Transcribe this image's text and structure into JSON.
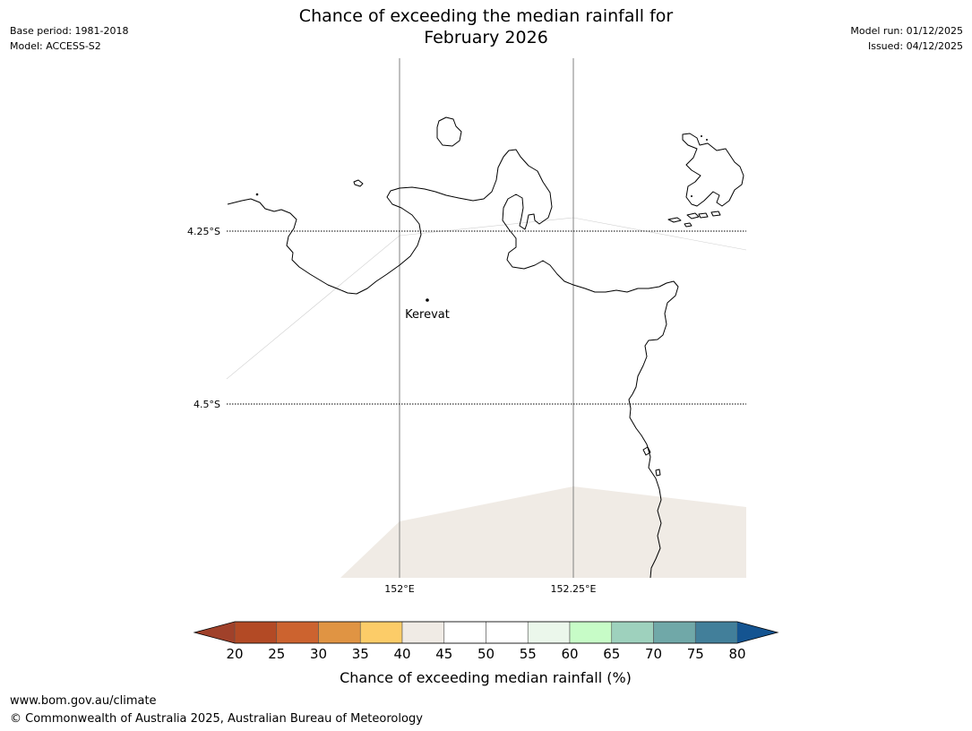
{
  "title_line1": "Chance of exceeding the median rainfall for",
  "title_line2": "February 2026",
  "meta_left": [
    "Base period: 1981-2018",
    "Model: ACCESS-S2"
  ],
  "meta_right": [
    "Model run: 01/12/2025",
    "Issued: 04/12/2025"
  ],
  "map": {
    "lat_labels": [
      "4.25°S",
      "4.5°S"
    ],
    "lon_labels": [
      "152°E",
      "152.25°E"
    ],
    "places": [
      {
        "name": "Kerevat"
      }
    ],
    "land_colors": {
      "coast": "#000000",
      "shade_40_45": "#f0ebe5"
    }
  },
  "colorbar": {
    "title": "Chance of exceeding median rainfall (%)",
    "ticks": [
      "20",
      "25",
      "30",
      "35",
      "40",
      "45",
      "50",
      "55",
      "60",
      "65",
      "70",
      "75",
      "80"
    ],
    "colors": [
      "#a0412a",
      "#b34a25",
      "#cc632f",
      "#e09443",
      "#fccc68",
      "#f0ebe5",
      "#ffffff",
      "#ffffff",
      "#ebf7eb",
      "#c7fcc7",
      "#9ed1bd",
      "#70a8a8",
      "#427f9a",
      "#145491"
    ]
  },
  "footer": {
    "url": "www.bom.gov.au/climate",
    "copyright": "© Commonwealth of Australia 2025, Australian Bureau of Meteorology"
  }
}
